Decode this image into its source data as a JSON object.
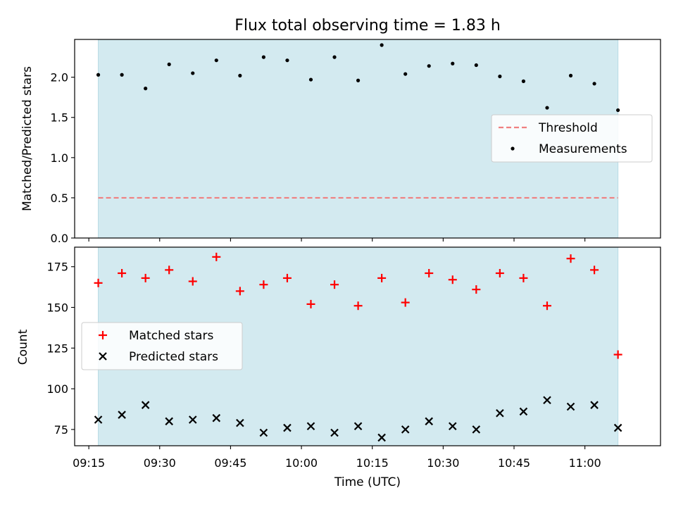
{
  "chart_data": [
    {
      "type": "scatter",
      "title": "Flux total observing time = 1.83 h",
      "xlabel": "",
      "ylabel": "Matched/Predicted stars",
      "xlim": [
        "09:12",
        "11:16"
      ],
      "ylim": [
        0,
        2.47
      ],
      "shaded_span": [
        "09:17",
        "11:07"
      ],
      "shade_color": "#d3eaf0",
      "yticks": [
        "0.0",
        "0.5",
        "1.0",
        "1.5",
        "2.0"
      ],
      "legend_position": "center-right",
      "reference_lines": [
        {
          "name": "Threshold",
          "y": 0.5,
          "style": "dashed",
          "color": "#f08080"
        }
      ],
      "series": [
        {
          "name": "Measurements",
          "color": "#000000",
          "marker": "dot",
          "x": [
            "09:17",
            "09:22",
            "09:27",
            "09:32",
            "09:37",
            "09:42",
            "09:47",
            "09:52",
            "09:57",
            "10:02",
            "10:07",
            "10:12",
            "10:17",
            "10:22",
            "10:27",
            "10:32",
            "10:37",
            "10:42",
            "10:47",
            "10:52",
            "10:57",
            "11:02",
            "11:07"
          ],
          "y": [
            2.03,
            2.03,
            1.86,
            2.16,
            2.05,
            2.21,
            2.02,
            2.25,
            2.21,
            1.97,
            2.25,
            1.96,
            2.4,
            2.04,
            2.14,
            2.17,
            2.15,
            2.01,
            1.95,
            1.62,
            2.02,
            1.92,
            1.59
          ]
        }
      ]
    },
    {
      "type": "scatter",
      "title": "",
      "xlabel": "Time (UTC)",
      "ylabel": "Count",
      "xlim": [
        "09:12",
        "11:16"
      ],
      "ylim": [
        65,
        187
      ],
      "shaded_span": [
        "09:17",
        "11:07"
      ],
      "shade_color": "#d3eaf0",
      "xticks": [
        "09:15",
        "09:30",
        "09:45",
        "10:00",
        "10:15",
        "10:30",
        "10:45",
        "11:00"
      ],
      "yticks": [
        "75",
        "100",
        "125",
        "150",
        "175"
      ],
      "legend_position": "center-left",
      "series": [
        {
          "name": "Matched stars",
          "color": "#ff0000",
          "marker": "plus",
          "x": [
            "09:17",
            "09:22",
            "09:27",
            "09:32",
            "09:37",
            "09:42",
            "09:47",
            "09:52",
            "09:57",
            "10:02",
            "10:07",
            "10:12",
            "10:17",
            "10:22",
            "10:27",
            "10:32",
            "10:37",
            "10:42",
            "10:47",
            "10:52",
            "10:57",
            "11:02",
            "11:07"
          ],
          "y": [
            165,
            171,
            168,
            173,
            166,
            181,
            160,
            164,
            168,
            152,
            164,
            151,
            168,
            153,
            171,
            167,
            161,
            171,
            168,
            151,
            180,
            173,
            121
          ]
        },
        {
          "name": "Predicted stars",
          "color": "#000000",
          "marker": "x",
          "x": [
            "09:17",
            "09:22",
            "09:27",
            "09:32",
            "09:37",
            "09:42",
            "09:47",
            "09:52",
            "09:57",
            "10:02",
            "10:07",
            "10:12",
            "10:17",
            "10:22",
            "10:27",
            "10:32",
            "10:37",
            "10:42",
            "10:47",
            "10:52",
            "10:57",
            "11:02",
            "11:07"
          ],
          "y": [
            81,
            84,
            90,
            80,
            81,
            82,
            79,
            73,
            76,
            77,
            73,
            77,
            70,
            75,
            80,
            77,
            75,
            85,
            86,
            93,
            89,
            90,
            76
          ]
        }
      ]
    }
  ]
}
